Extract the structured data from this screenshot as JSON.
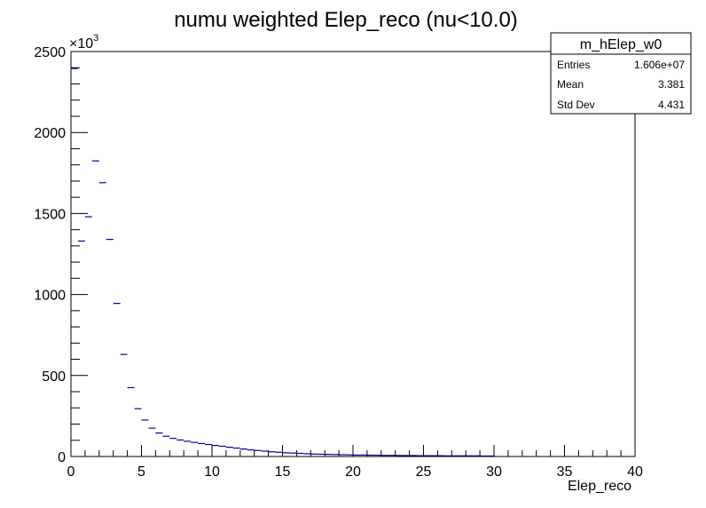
{
  "chart_data": {
    "type": "bar",
    "title": "numu weighted Elep_reco (nu<10.0)",
    "xlabel": "Elep_reco",
    "ylabel": "",
    "xlim": [
      0,
      40
    ],
    "ylim": [
      0,
      2500
    ],
    "y_multiplier": "×10",
    "y_multiplier_exp": "3",
    "x_ticks": [
      "0",
      "5",
      "10",
      "15",
      "20",
      "25",
      "30",
      "35",
      "40"
    ],
    "y_ticks": [
      "0",
      "500",
      "1000",
      "1500",
      "2000",
      "2500"
    ],
    "bin_width": 0.5,
    "bin_low_edges": [
      0,
      0.5,
      1,
      1.5,
      2,
      2.5,
      3,
      3.5,
      4,
      4.5,
      5,
      5.5,
      6,
      6.5,
      7,
      7.5,
      8,
      8.5,
      9,
      9.5,
      10,
      10.5,
      11,
      11.5,
      12,
      12.5,
      13,
      13.5,
      14,
      14.5,
      15,
      15.5,
      16,
      16.5,
      17,
      17.5,
      18,
      18.5,
      19,
      19.5,
      20,
      20.5,
      21,
      21.5,
      22,
      22.5,
      23,
      23.5,
      24,
      24.5,
      25,
      25.5,
      26,
      26.5,
      27,
      27.5,
      28,
      28.5,
      29,
      29.5
    ],
    "values": [
      2395,
      1330,
      1480,
      1825,
      1690,
      1340,
      945,
      630,
      425,
      295,
      225,
      175,
      145,
      125,
      112,
      102,
      94,
      87,
      80,
      74,
      68,
      63,
      57,
      52,
      46,
      41,
      37,
      33,
      29,
      26,
      23,
      21,
      19,
      17,
      15,
      14,
      13,
      12,
      11,
      10,
      9,
      9,
      8,
      8,
      7,
      7,
      6,
      6,
      6,
      5,
      5,
      5,
      5,
      4,
      4,
      4,
      4,
      4,
      3,
      3
    ],
    "grid": false,
    "line_color": "#000099"
  },
  "stats_box": {
    "name": "m_hElep_w0",
    "rows": [
      {
        "label": "Entries",
        "value": "1.606e+07"
      },
      {
        "label": "Mean",
        "value": "3.381"
      },
      {
        "label": "Std Dev",
        "value": "4.431"
      }
    ]
  }
}
